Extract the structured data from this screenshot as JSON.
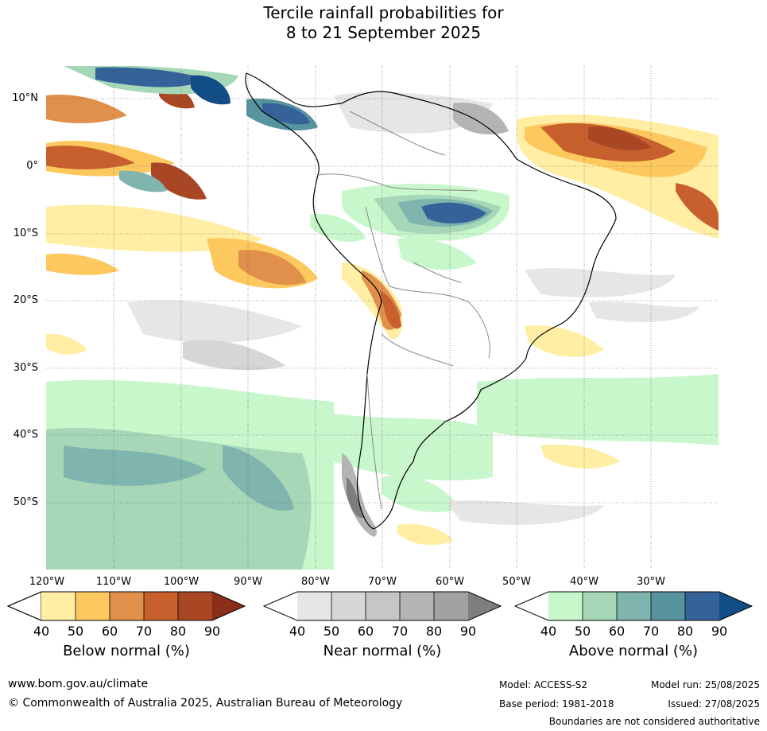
{
  "title_line1": "Tercile rainfall probabilities for",
  "title_line2": "8 to 21 September 2025",
  "lat_labels": [
    "10°N",
    "0°",
    "10°S",
    "20°S",
    "30°S",
    "40°S",
    "50°S"
  ],
  "lon_labels": [
    "120°W",
    "110°W",
    "100°W",
    "90°W",
    "80°W",
    "70°W",
    "60°W",
    "50°W",
    "40°W",
    "30°W"
  ],
  "colorbars": [
    {
      "label": "Below normal (%)",
      "ticks": [
        "40",
        "50",
        "60",
        "70",
        "80",
        "90"
      ],
      "colors": [
        "#ffeea3",
        "#fdc95f",
        "#e0904a",
        "#c8602e",
        "#a94624",
        "#8a2e1a"
      ]
    },
    {
      "label": "Near normal (%)",
      "ticks": [
        "40",
        "50",
        "60",
        "70",
        "80",
        "90"
      ],
      "colors": [
        "#e6e6e6",
        "#d6d6d6",
        "#c6c6c6",
        "#b4b4b4",
        "#a2a2a2",
        "#7e7e7e"
      ]
    },
    {
      "label": "Above normal (%)",
      "ticks": [
        "40",
        "50",
        "60",
        "70",
        "80",
        "90"
      ],
      "colors": [
        "#c8f7cc",
        "#a6d8b8",
        "#7fb5ae",
        "#5893a0",
        "#36629a",
        "#124d85"
      ]
    }
  ],
  "footer": {
    "website": "www.bom.gov.au/climate",
    "copyright": "© Commonwealth of Australia 2025, Australian Bureau of Meteorology",
    "model": "Model: ACCESS-S2",
    "base_period": "Base period: 1981-2018",
    "model_run": "Model run: 25/08/2025",
    "issued": "Issued: 27/08/2025",
    "disclaimer": "Boundaries are not considered authoritative"
  }
}
